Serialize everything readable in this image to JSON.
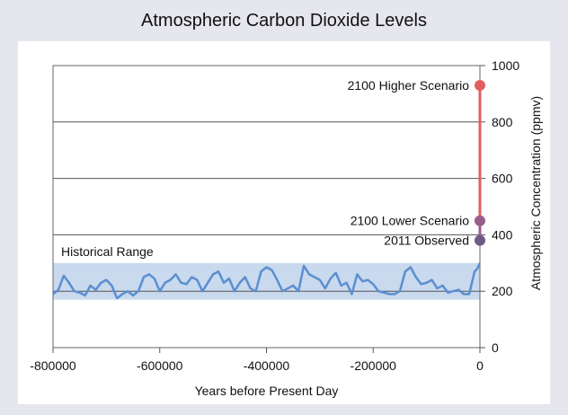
{
  "chart_data": {
    "type": "line",
    "title": "Atmospheric Carbon Dioxide Levels",
    "xlabel": "Years before Present Day",
    "ylabel": "Atmospheric Concentration (ppmv)",
    "xlim": [
      -800000,
      0
    ],
    "ylim": [
      0,
      1000
    ],
    "x_ticks": [
      -800000,
      -600000,
      -400000,
      -200000,
      0
    ],
    "y_ticks": [
      0,
      200,
      400,
      600,
      800,
      1000
    ],
    "grid": "horizontal",
    "historical_range": {
      "label": "Historical Range",
      "y_min": 170,
      "y_max": 300
    },
    "series": [
      {
        "color": "#5b8fd0",
        "x": [
          -800000,
          -790000,
          -780000,
          -770000,
          -760000,
          -750000,
          -740000,
          -730000,
          -720000,
          -710000,
          -700000,
          -690000,
          -680000,
          -670000,
          -660000,
          -650000,
          -640000,
          -630000,
          -620000,
          -610000,
          -600000,
          -590000,
          -580000,
          -570000,
          -560000,
          -550000,
          -540000,
          -530000,
          -520000,
          -510000,
          -500000,
          -490000,
          -480000,
          -470000,
          -460000,
          -450000,
          -440000,
          -430000,
          -420000,
          -410000,
          -400000,
          -390000,
          -380000,
          -370000,
          -360000,
          -350000,
          -340000,
          -330000,
          -320000,
          -310000,
          -300000,
          -290000,
          -280000,
          -270000,
          -260000,
          -250000,
          -240000,
          -230000,
          -220000,
          -210000,
          -200000,
          -190000,
          -180000,
          -170000,
          -160000,
          -150000,
          -140000,
          -130000,
          -120000,
          -110000,
          -100000,
          -90000,
          -80000,
          -70000,
          -60000,
          -50000,
          -40000,
          -30000,
          -20000,
          -10000,
          -5000,
          0
        ],
        "values": [
          190,
          205,
          255,
          230,
          200,
          195,
          185,
          220,
          205,
          230,
          240,
          220,
          175,
          190,
          200,
          185,
          200,
          250,
          260,
          245,
          200,
          230,
          240,
          260,
          230,
          225,
          250,
          240,
          200,
          230,
          260,
          270,
          230,
          245,
          200,
          230,
          250,
          210,
          200,
          270,
          285,
          275,
          240,
          200,
          210,
          220,
          200,
          290,
          260,
          250,
          240,
          210,
          245,
          265,
          220,
          230,
          190,
          260,
          235,
          240,
          225,
          200,
          195,
          190,
          190,
          200,
          270,
          285,
          250,
          225,
          230,
          240,
          210,
          220,
          195,
          200,
          205,
          190,
          190,
          270,
          280,
          300
        ]
      }
    ],
    "annotations": [
      {
        "label": "2100 Higher Scenario",
        "x": 0,
        "y": 930,
        "color": "#e06060"
      },
      {
        "label": "2100 Lower Scenario",
        "x": 0,
        "y": 450,
        "color": "#9a5e8c"
      },
      {
        "label": "2011 Observed",
        "x": 0,
        "y": 380,
        "color": "#6e5a86"
      }
    ]
  }
}
